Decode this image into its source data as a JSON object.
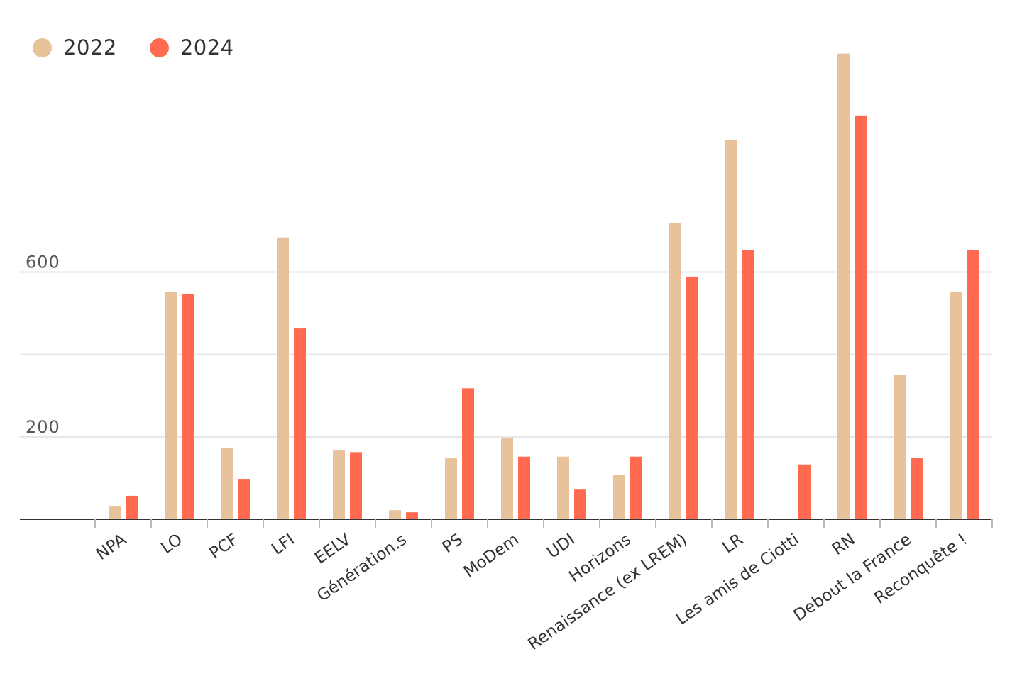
{
  "colors": {
    "series_2022": "#E7C29A",
    "series_2024": "#FF6A50",
    "grid": "#E5E5E5",
    "axis": "#333333"
  },
  "chart_data": {
    "type": "bar",
    "categories": [
      "NPA",
      "LO",
      "PCF",
      "LFI",
      "EELV",
      "Génération.s",
      "PS",
      "MoDem",
      "UDI",
      "Horizons",
      "Renaissance (ex LREM)",
      "LR",
      "Les amis de Ciotti",
      "RN",
      "Debout la France",
      "Reconquête !"
    ],
    "series": [
      {
        "name": "2022",
        "values": [
          32,
          551,
          174,
          684,
          168,
          22,
          148,
          198,
          152,
          108,
          719,
          920,
          null,
          1130,
          350,
          551
        ]
      },
      {
        "name": "2024",
        "values": [
          57,
          547,
          98,
          463,
          163,
          17,
          318,
          152,
          72,
          152,
          589,
          654,
          133,
          980,
          148,
          654
        ]
      }
    ],
    "yticks": [
      {
        "value": 200,
        "label": "200"
      },
      {
        "value": 600,
        "label": "600"
      }
    ],
    "grid_values": [
      200,
      400,
      600
    ],
    "ylim": [
      0,
      1200
    ],
    "legend_position": "top-left",
    "grid": true
  }
}
